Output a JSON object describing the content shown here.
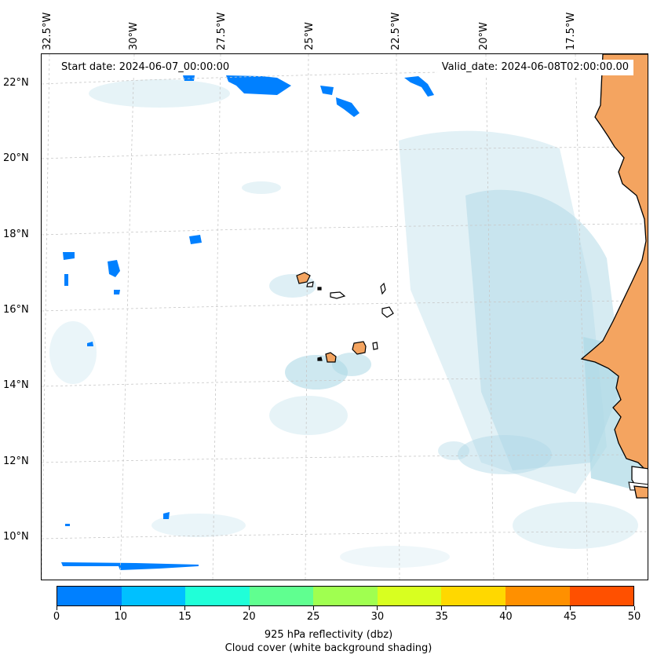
{
  "map": {
    "start_date": "Start date: 2024-06-07_00:00:00",
    "valid_date": "Valid_date: 2024-06-08T02:00:00.00",
    "lat_labels": [
      "22°N",
      "20°N",
      "18°N",
      "16°N",
      "14°N",
      "12°N",
      "10°N"
    ],
    "lon_labels": [
      "32.5°W",
      "30°W",
      "27.5°W",
      "25°W",
      "22.5°W",
      "20°W",
      "17.5°W"
    ],
    "land_color": "#f4a460",
    "cloud_color": "#add8e6",
    "reflectivity_color": "#0080ff"
  },
  "colorbar": {
    "ticks": [
      "0",
      "10",
      "15",
      "20",
      "25",
      "30",
      "35",
      "40",
      "45",
      "50"
    ],
    "colors": [
      "#0080ff",
      "#00c0ff",
      "#20ffd8",
      "#60ff90",
      "#a0ff50",
      "#d8ff20",
      "#ffd800",
      "#ff9000",
      "#ff5000"
    ],
    "label": "925 hPa reflectivity (dbz)",
    "sublabel": "Cloud cover (white background shading)"
  }
}
